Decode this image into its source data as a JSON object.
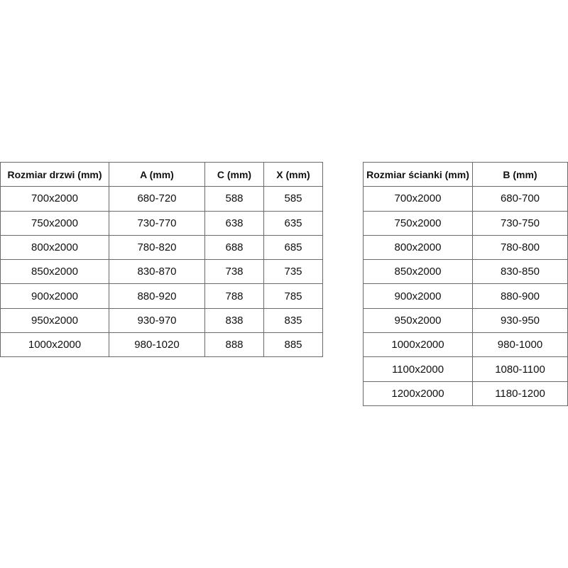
{
  "doors_table": {
    "headers": [
      "Rozmiar drzwi (mm)",
      "A (mm)",
      "C (mm)",
      "X (mm)"
    ],
    "rows": [
      [
        "700x2000",
        "680-720",
        "588",
        "585"
      ],
      [
        "750x2000",
        "730-770",
        "638",
        "635"
      ],
      [
        "800x2000",
        "780-820",
        "688",
        "685"
      ],
      [
        "850x2000",
        "830-870",
        "738",
        "735"
      ],
      [
        "900x2000",
        "880-920",
        "788",
        "785"
      ],
      [
        "950x2000",
        "930-970",
        "838",
        "835"
      ],
      [
        "1000x2000",
        "980-1020",
        "888",
        "885"
      ]
    ]
  },
  "walls_table": {
    "headers": [
      "Rozmiar ścianki (mm)",
      "B (mm)"
    ],
    "rows": [
      [
        "700x2000",
        "680-700"
      ],
      [
        "750x2000",
        "730-750"
      ],
      [
        "800x2000",
        "780-800"
      ],
      [
        "850x2000",
        "830-850"
      ],
      [
        "900x2000",
        "880-900"
      ],
      [
        "950x2000",
        "930-950"
      ],
      [
        "1000x2000",
        "980-1000"
      ],
      [
        "1100x2000",
        "1080-1100"
      ],
      [
        "1200x2000",
        "1180-1200"
      ]
    ]
  }
}
